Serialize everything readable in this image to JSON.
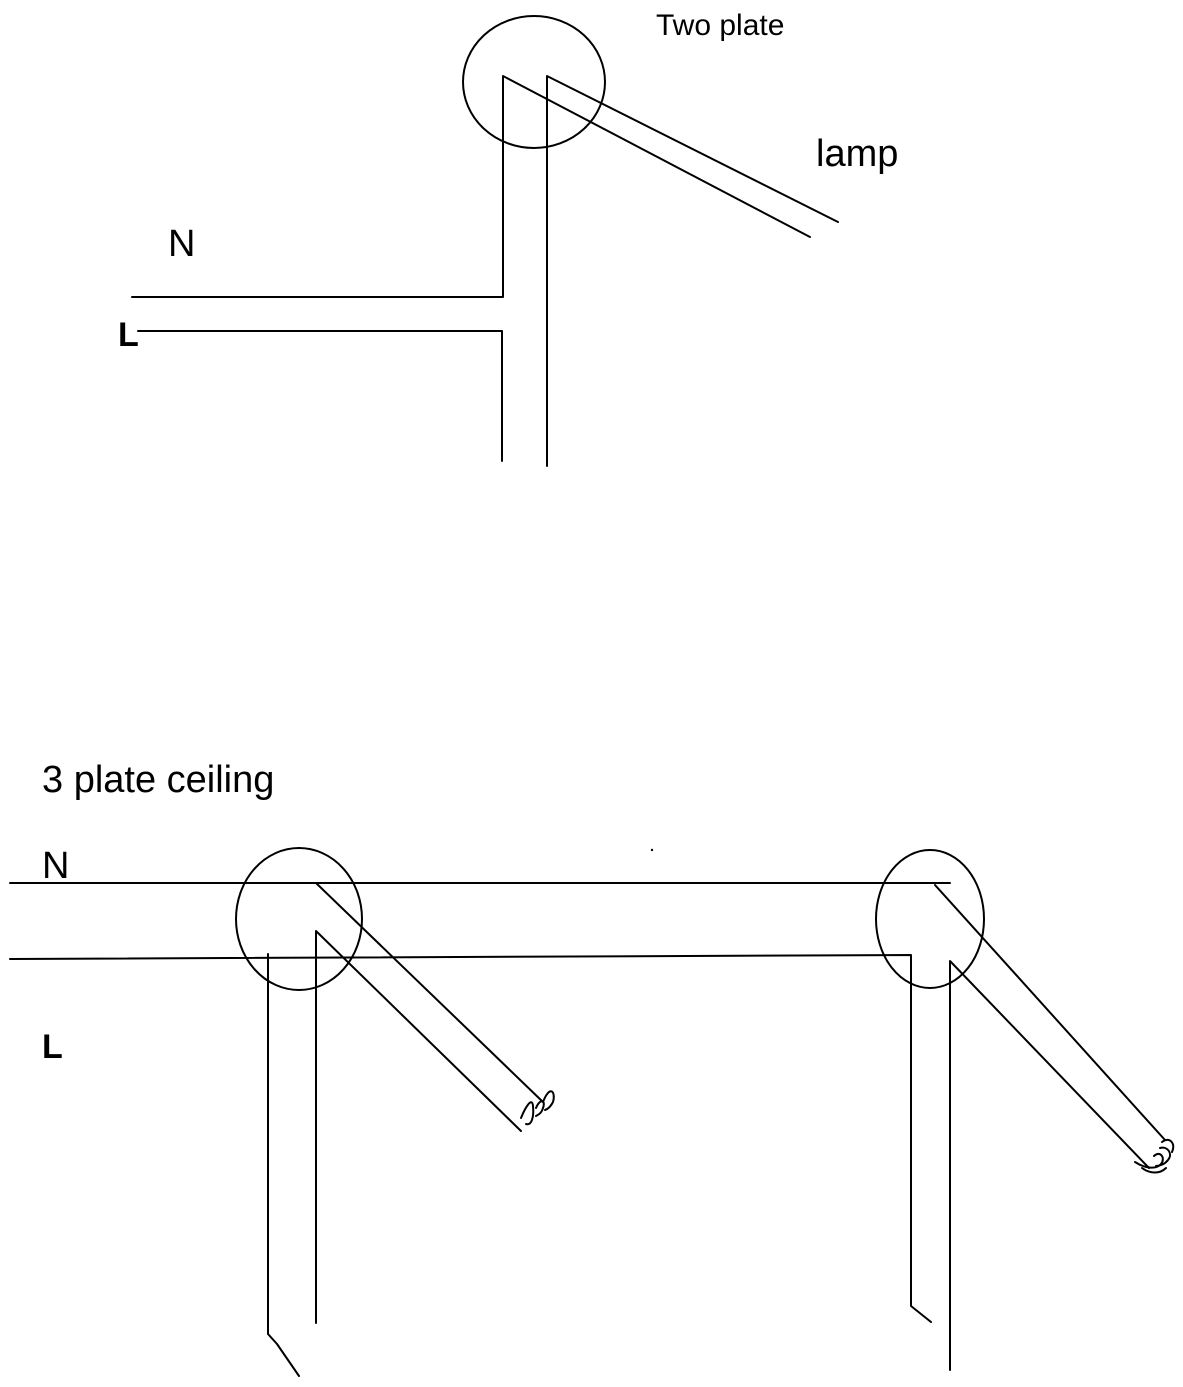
{
  "top_diagram": {
    "title": "Two plate",
    "lamp_label": "lamp",
    "neutral_label": "N",
    "live_label": "L"
  },
  "bottom_diagram": {
    "title": "3 plate ceiling",
    "neutral_label": "N",
    "live_label": "L"
  }
}
